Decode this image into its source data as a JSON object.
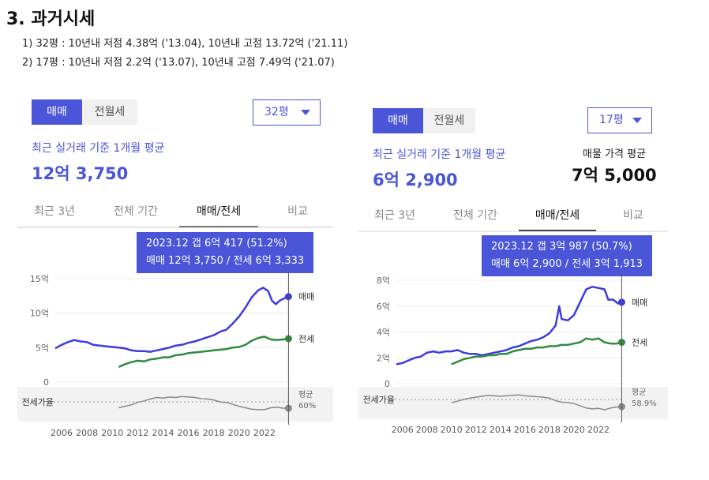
{
  "header": {
    "title": "3. 과거시세",
    "note1": "1) 32평 : 10년내 저점 4.38억 ('13.04), 10년내 고점 13.72억 ('21.11)",
    "note2": "2) 17평 : 10년내 저점 2.2억 ('13.07), 10년내 고점 7.49억 ('21.07)"
  },
  "colors": {
    "sale": "#3b3be0",
    "jeonse": "#2e8b3e",
    "ratio": "#8a8a8a",
    "accent": "#4a55d8"
  },
  "panels": [
    {
      "tabs": [
        "매매",
        "전월세"
      ],
      "size": "32평",
      "sub": "최근 실거래 기준 1개월 평균",
      "price": "12억 3,750",
      "subtabs": [
        "최근 3년",
        "전체 기간",
        "매매/전세",
        "비교"
      ],
      "tooltip_line1": "2023.12  갭 6억 417 (51.2%)",
      "tooltip_line2": "매매 12억 3,750 / 전세 6억 3,333",
      "ratio_label": "전세가율",
      "avg_label": "평균",
      "avg_value": "60%"
    },
    {
      "tabs": [
        "매매",
        "전월세"
      ],
      "size": "17평",
      "sub": "최근 실거래 기준 1개월 평균",
      "price": "6억 2,900",
      "ask_label": "매물 가격 평균",
      "ask_value": "7억 5,000",
      "subtabs": [
        "최근 3년",
        "전체 기간",
        "매매/전세",
        "비교"
      ],
      "tooltip_line1": "2023.12  갭 3억 987 (50.7%)",
      "tooltip_line2": "매매 6억 2,900 / 전세 3억 1,913",
      "ratio_label": "전세가율",
      "avg_label": "평균",
      "avg_value": "58.9%"
    }
  ],
  "chart_data": [
    {
      "type": "line",
      "title": "",
      "y_ticks": [
        "15억",
        "10억",
        "5억",
        "0"
      ],
      "ylim": [
        0,
        15
      ],
      "x_ticks": [
        "2006",
        "2008",
        "2010",
        "2012",
        "2014",
        "2016",
        "2018",
        "2020",
        "2022"
      ],
      "xlim": [
        2005.5,
        2024.0
      ],
      "series": [
        {
          "name": "매매",
          "points": [
            [
              2005.5,
              4.9
            ],
            [
              2006.0,
              5.4
            ],
            [
              2006.5,
              5.8
            ],
            [
              2007.0,
              6.1
            ],
            [
              2007.5,
              5.9
            ],
            [
              2008.0,
              5.8
            ],
            [
              2008.5,
              5.4
            ],
            [
              2009.0,
              5.3
            ],
            [
              2009.5,
              5.2
            ],
            [
              2010.0,
              5.1
            ],
            [
              2010.5,
              5.0
            ],
            [
              2011.0,
              4.9
            ],
            [
              2011.5,
              4.6
            ],
            [
              2012.0,
              4.5
            ],
            [
              2012.5,
              4.5
            ],
            [
              2013.0,
              4.4
            ],
            [
              2013.5,
              4.6
            ],
            [
              2014.0,
              4.8
            ],
            [
              2014.5,
              5.0
            ],
            [
              2015.0,
              5.3
            ],
            [
              2015.5,
              5.4
            ],
            [
              2016.0,
              5.7
            ],
            [
              2016.5,
              5.9
            ],
            [
              2017.0,
              6.2
            ],
            [
              2017.5,
              6.5
            ],
            [
              2018.0,
              6.8
            ],
            [
              2018.5,
              7.3
            ],
            [
              2019.0,
              7.6
            ],
            [
              2019.5,
              8.5
            ],
            [
              2020.0,
              9.5
            ],
            [
              2020.5,
              10.8
            ],
            [
              2021.0,
              12.3
            ],
            [
              2021.5,
              13.3
            ],
            [
              2021.9,
              13.7
            ],
            [
              2022.3,
              13.2
            ],
            [
              2022.6,
              11.8
            ],
            [
              2022.9,
              11.3
            ],
            [
              2023.2,
              11.8
            ],
            [
              2023.5,
              12.1
            ],
            [
              2023.9,
              12.4
            ]
          ]
        },
        {
          "name": "전세",
          "points": [
            [
              2010.5,
              2.2
            ],
            [
              2011.0,
              2.6
            ],
            [
              2011.5,
              2.9
            ],
            [
              2012.0,
              3.1
            ],
            [
              2012.5,
              3.0
            ],
            [
              2013.0,
              3.3
            ],
            [
              2013.5,
              3.4
            ],
            [
              2014.0,
              3.6
            ],
            [
              2014.5,
              3.6
            ],
            [
              2015.0,
              3.9
            ],
            [
              2015.5,
              4.0
            ],
            [
              2016.0,
              4.2
            ],
            [
              2016.5,
              4.3
            ],
            [
              2017.0,
              4.4
            ],
            [
              2017.5,
              4.5
            ],
            [
              2018.0,
              4.6
            ],
            [
              2018.5,
              4.7
            ],
            [
              2019.0,
              4.8
            ],
            [
              2019.5,
              5.0
            ],
            [
              2020.0,
              5.1
            ],
            [
              2020.5,
              5.4
            ],
            [
              2021.0,
              6.0
            ],
            [
              2021.5,
              6.4
            ],
            [
              2022.0,
              6.6
            ],
            [
              2022.5,
              6.2
            ],
            [
              2023.0,
              6.1
            ],
            [
              2023.5,
              6.2
            ],
            [
              2023.9,
              6.3
            ]
          ]
        },
        {
          "name": "전세가율",
          "points": [
            [
              2010.5,
              52
            ],
            [
              2011.0,
              55
            ],
            [
              2011.5,
              58
            ],
            [
              2012.0,
              63
            ],
            [
              2012.5,
              66
            ],
            [
              2013.0,
              70
            ],
            [
              2013.5,
              73
            ],
            [
              2014.0,
              72
            ],
            [
              2014.5,
              74
            ],
            [
              2015.0,
              73
            ],
            [
              2015.5,
              75
            ],
            [
              2016.0,
              74
            ],
            [
              2016.5,
              73
            ],
            [
              2017.0,
              71
            ],
            [
              2017.5,
              70
            ],
            [
              2018.0,
              68
            ],
            [
              2018.5,
              64
            ],
            [
              2019.0,
              63
            ],
            [
              2019.5,
              59
            ],
            [
              2020.0,
              55
            ],
            [
              2020.5,
              52
            ],
            [
              2021.0,
              49
            ],
            [
              2021.5,
              48
            ],
            [
              2022.0,
              48
            ],
            [
              2022.5,
              52
            ],
            [
              2023.0,
              53
            ],
            [
              2023.5,
              51
            ],
            [
              2023.9,
              51
            ]
          ]
        }
      ]
    },
    {
      "type": "line",
      "title": "",
      "y_ticks": [
        "8억",
        "6억",
        "4억",
        "2억",
        "0"
      ],
      "ylim": [
        0,
        8
      ],
      "x_ticks": [
        "2006",
        "2008",
        "2010",
        "2012",
        "2014",
        "2016",
        "2018",
        "2020",
        "2022"
      ],
      "xlim": [
        2005.5,
        2024.0
      ],
      "series": [
        {
          "name": "매매",
          "points": [
            [
              2005.5,
              1.5
            ],
            [
              2006.0,
              1.6
            ],
            [
              2006.5,
              1.8
            ],
            [
              2007.0,
              2.0
            ],
            [
              2007.5,
              2.1
            ],
            [
              2008.0,
              2.4
            ],
            [
              2008.5,
              2.5
            ],
            [
              2009.0,
              2.4
            ],
            [
              2009.5,
              2.5
            ],
            [
              2010.0,
              2.5
            ],
            [
              2010.5,
              2.6
            ],
            [
              2011.0,
              2.4
            ],
            [
              2011.5,
              2.3
            ],
            [
              2012.0,
              2.3
            ],
            [
              2012.5,
              2.2
            ],
            [
              2013.0,
              2.3
            ],
            [
              2013.5,
              2.4
            ],
            [
              2014.0,
              2.5
            ],
            [
              2014.5,
              2.6
            ],
            [
              2015.0,
              2.8
            ],
            [
              2015.5,
              2.9
            ],
            [
              2016.0,
              3.1
            ],
            [
              2016.5,
              3.3
            ],
            [
              2017.0,
              3.4
            ],
            [
              2017.5,
              3.6
            ],
            [
              2018.0,
              3.9
            ],
            [
              2018.5,
              4.5
            ],
            [
              2018.8,
              6.0
            ],
            [
              2019.0,
              5.0
            ],
            [
              2019.5,
              4.9
            ],
            [
              2020.0,
              5.3
            ],
            [
              2020.5,
              6.3
            ],
            [
              2021.0,
              7.3
            ],
            [
              2021.5,
              7.5
            ],
            [
              2022.0,
              7.4
            ],
            [
              2022.5,
              7.3
            ],
            [
              2022.8,
              6.5
            ],
            [
              2023.2,
              6.5
            ],
            [
              2023.6,
              6.2
            ],
            [
              2023.9,
              6.3
            ]
          ]
        },
        {
          "name": "전세",
          "points": [
            [
              2010.0,
              1.5
            ],
            [
              2010.5,
              1.7
            ],
            [
              2011.0,
              1.9
            ],
            [
              2011.5,
              2.0
            ],
            [
              2012.0,
              2.1
            ],
            [
              2012.5,
              2.1
            ],
            [
              2013.0,
              2.2
            ],
            [
              2013.5,
              2.2
            ],
            [
              2014.0,
              2.3
            ],
            [
              2014.5,
              2.3
            ],
            [
              2015.0,
              2.5
            ],
            [
              2015.5,
              2.6
            ],
            [
              2016.0,
              2.7
            ],
            [
              2016.5,
              2.7
            ],
            [
              2017.0,
              2.8
            ],
            [
              2017.5,
              2.8
            ],
            [
              2018.0,
              2.9
            ],
            [
              2018.5,
              2.9
            ],
            [
              2019.0,
              3.0
            ],
            [
              2019.5,
              3.0
            ],
            [
              2020.0,
              3.1
            ],
            [
              2020.5,
              3.2
            ],
            [
              2021.0,
              3.5
            ],
            [
              2021.5,
              3.4
            ],
            [
              2022.0,
              3.5
            ],
            [
              2022.5,
              3.2
            ],
            [
              2023.0,
              3.1
            ],
            [
              2023.5,
              3.1
            ],
            [
              2023.9,
              3.2
            ]
          ]
        },
        {
          "name": "전세가율",
          "points": [
            [
              2010.0,
              60
            ],
            [
              2010.5,
              63
            ],
            [
              2011.0,
              67
            ],
            [
              2011.5,
              70
            ],
            [
              2012.0,
              72
            ],
            [
              2012.5,
              74
            ],
            [
              2013.0,
              76
            ],
            [
              2013.5,
              75
            ],
            [
              2014.0,
              74
            ],
            [
              2014.5,
              75
            ],
            [
              2015.0,
              76
            ],
            [
              2015.5,
              77
            ],
            [
              2016.0,
              75
            ],
            [
              2016.5,
              74
            ],
            [
              2017.0,
              73
            ],
            [
              2017.5,
              72
            ],
            [
              2018.0,
              70
            ],
            [
              2018.5,
              64
            ],
            [
              2019.0,
              61
            ],
            [
              2019.5,
              60
            ],
            [
              2020.0,
              58
            ],
            [
              2020.5,
              53
            ],
            [
              2021.0,
              48
            ],
            [
              2021.5,
              46
            ],
            [
              2022.0,
              47
            ],
            [
              2022.5,
              44
            ],
            [
              2023.0,
              48
            ],
            [
              2023.5,
              50
            ],
            [
              2023.9,
              51
            ]
          ]
        }
      ]
    }
  ]
}
